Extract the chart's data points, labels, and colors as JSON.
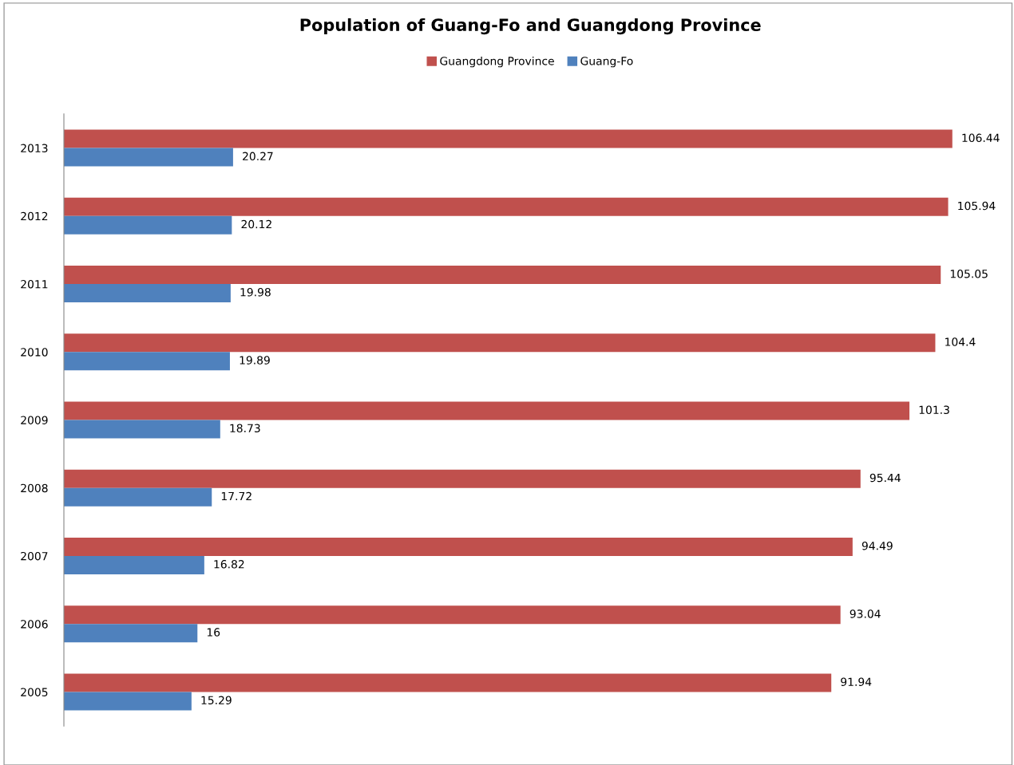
{
  "chart_data": {
    "type": "bar",
    "orientation": "horizontal",
    "title": "Population of Guang-Fo and Guangdong Province",
    "categories": [
      "2013",
      "2012",
      "2011",
      "2010",
      "2009",
      "2008",
      "2007",
      "2006",
      "2005"
    ],
    "series": [
      {
        "name": "Guangdong Province",
        "color": "#c0504d",
        "values": [
          106.44,
          105.94,
          105.05,
          104.4,
          101.3,
          95.44,
          94.49,
          93.04,
          91.94
        ]
      },
      {
        "name": "Guang-Fo",
        "color": "#4f81bd",
        "values": [
          20.27,
          20.12,
          19.98,
          19.89,
          18.73,
          17.72,
          16.82,
          16,
          15.29
        ]
      }
    ],
    "data_labels": true,
    "legend": "top",
    "grid": false,
    "tick_labels": "y"
  }
}
